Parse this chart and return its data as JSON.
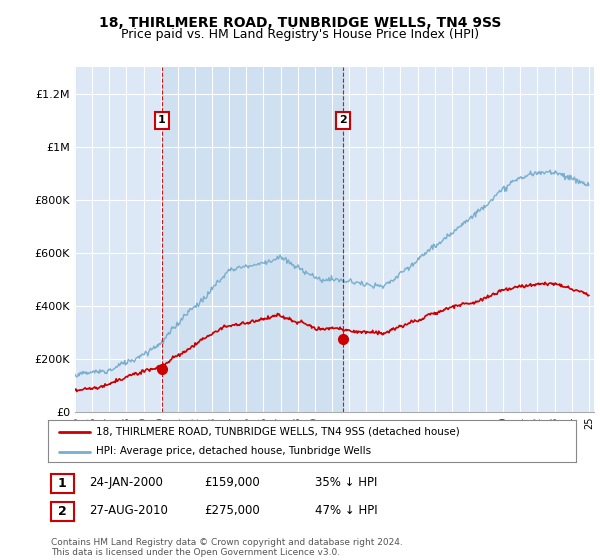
{
  "title": "18, THIRLMERE ROAD, TUNBRIDGE WELLS, TN4 9SS",
  "subtitle": "Price paid vs. HM Land Registry's House Price Index (HPI)",
  "ylim": [
    0,
    1300000
  ],
  "yticks": [
    0,
    200000,
    400000,
    600000,
    800000,
    1000000,
    1200000
  ],
  "ytick_labels": [
    "£0",
    "£200K",
    "£400K",
    "£600K",
    "£800K",
    "£1M",
    "£1.2M"
  ],
  "background_color": "#f0f4f8",
  "plot_bg_color": "#dce8f5",
  "shade_color": "#ccdff0",
  "hpi_color": "#7aaecd",
  "price_color": "#cc0000",
  "sale1_date": 2000.07,
  "sale1_price": 159000,
  "sale1_label": "1",
  "sale2_date": 2010.65,
  "sale2_price": 275000,
  "sale2_label": "2",
  "legend_house_label": "18, THIRLMERE ROAD, TUNBRIDGE WELLS, TN4 9SS (detached house)",
  "legend_hpi_label": "HPI: Average price, detached house, Tunbridge Wells",
  "note1_label": "1",
  "note1_date": "24-JAN-2000",
  "note1_price": "£159,000",
  "note1_pct": "35% ↓ HPI",
  "note2_label": "2",
  "note2_date": "27-AUG-2010",
  "note2_price": "£275,000",
  "note2_pct": "47% ↓ HPI",
  "footer": "Contains HM Land Registry data © Crown copyright and database right 2024.\nThis data is licensed under the Open Government Licence v3.0.",
  "title_fontsize": 10,
  "subtitle_fontsize": 9
}
